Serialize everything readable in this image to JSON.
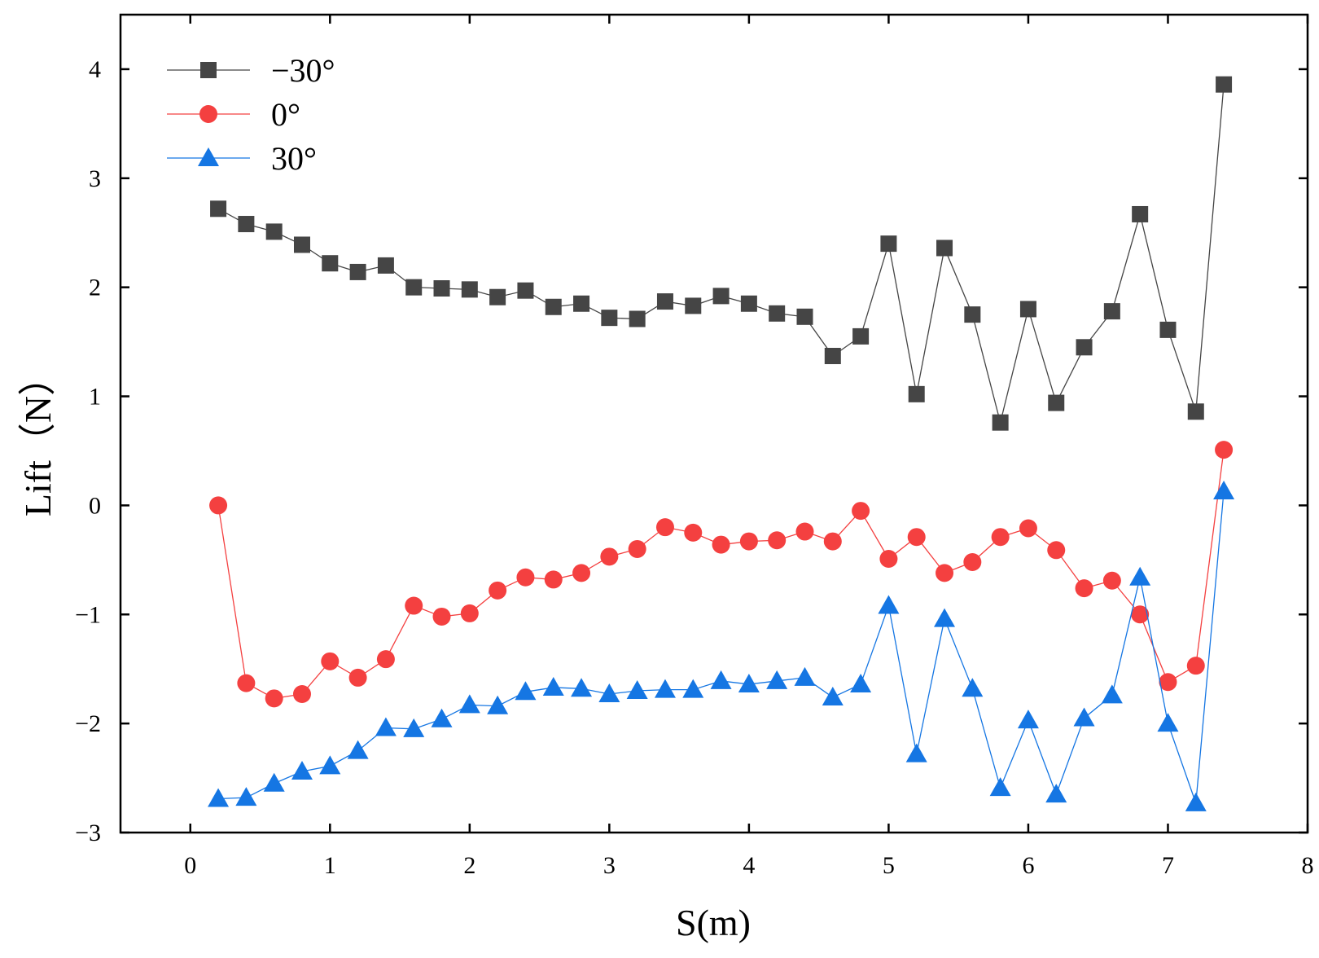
{
  "chart_data": {
    "type": "line",
    "xlabel": "S(m)",
    "ylabel": "Lift（N）",
    "xlim": [
      -0.5,
      8
    ],
    "ylim": [
      -3,
      4.5
    ],
    "xticks": [
      0,
      1,
      2,
      3,
      4,
      5,
      6,
      7,
      8
    ],
    "yticks": [
      -3,
      -2,
      -1,
      0,
      1,
      2,
      3,
      4
    ],
    "xtick_labels": [
      "0",
      "1",
      "2",
      "3",
      "4",
      "5",
      "6",
      "7",
      "8"
    ],
    "ytick_labels": [
      "−3",
      "−2",
      "−1",
      "0",
      "1",
      "2",
      "3",
      "4"
    ],
    "grid": false,
    "legend_position": "top-left",
    "x": [
      0.2,
      0.4,
      0.6,
      0.8,
      1.0,
      1.2,
      1.4,
      1.6,
      1.8,
      2.0,
      2.2,
      2.4,
      2.6,
      2.8,
      3.0,
      3.2,
      3.4,
      3.6,
      3.8,
      4.0,
      4.2,
      4.4,
      4.6,
      4.8,
      5.0,
      5.2,
      5.4,
      5.6,
      5.8,
      6.0,
      6.2,
      6.4,
      6.6,
      6.8,
      7.0,
      7.2,
      7.4
    ],
    "series": [
      {
        "name": "−30°",
        "color": "#454545",
        "marker": "square",
        "values": [
          2.72,
          2.58,
          2.51,
          2.39,
          2.22,
          2.14,
          2.2,
          2.0,
          1.99,
          1.98,
          1.91,
          1.97,
          1.82,
          1.85,
          1.72,
          1.71,
          1.87,
          1.83,
          1.92,
          1.85,
          1.76,
          1.73,
          1.37,
          1.55,
          2.4,
          1.02,
          2.36,
          1.75,
          0.76,
          1.8,
          0.94,
          1.45,
          1.78,
          2.67,
          1.61,
          0.86,
          3.86
        ]
      },
      {
        "name": "0°",
        "color": "#f44040",
        "marker": "circle",
        "values": [
          0.0,
          -1.63,
          -1.77,
          -1.73,
          -1.43,
          -1.58,
          -1.41,
          -0.92,
          -1.02,
          -0.99,
          -0.78,
          -0.66,
          -0.68,
          -0.62,
          -0.47,
          -0.4,
          -0.2,
          -0.25,
          -0.36,
          -0.33,
          -0.32,
          -0.24,
          -0.33,
          -0.05,
          -0.49,
          -0.29,
          -0.62,
          -0.52,
          -0.29,
          -0.21,
          -0.41,
          -0.76,
          -0.69,
          -1.0,
          -1.62,
          -1.47,
          0.51
        ]
      },
      {
        "name": "30°",
        "color": "#1576e3",
        "marker": "triangle",
        "values": [
          -2.69,
          -2.68,
          -2.55,
          -2.44,
          -2.39,
          -2.25,
          -2.04,
          -2.05,
          -1.96,
          -1.83,
          -1.84,
          -1.71,
          -1.67,
          -1.68,
          -1.73,
          -1.7,
          -1.69,
          -1.69,
          -1.61,
          -1.64,
          -1.61,
          -1.58,
          -1.76,
          -1.64,
          -0.92,
          -2.28,
          -1.04,
          -1.68,
          -2.59,
          -1.97,
          -2.65,
          -1.95,
          -1.74,
          -0.66,
          -2.0,
          -2.73,
          0.13
        ]
      }
    ]
  }
}
